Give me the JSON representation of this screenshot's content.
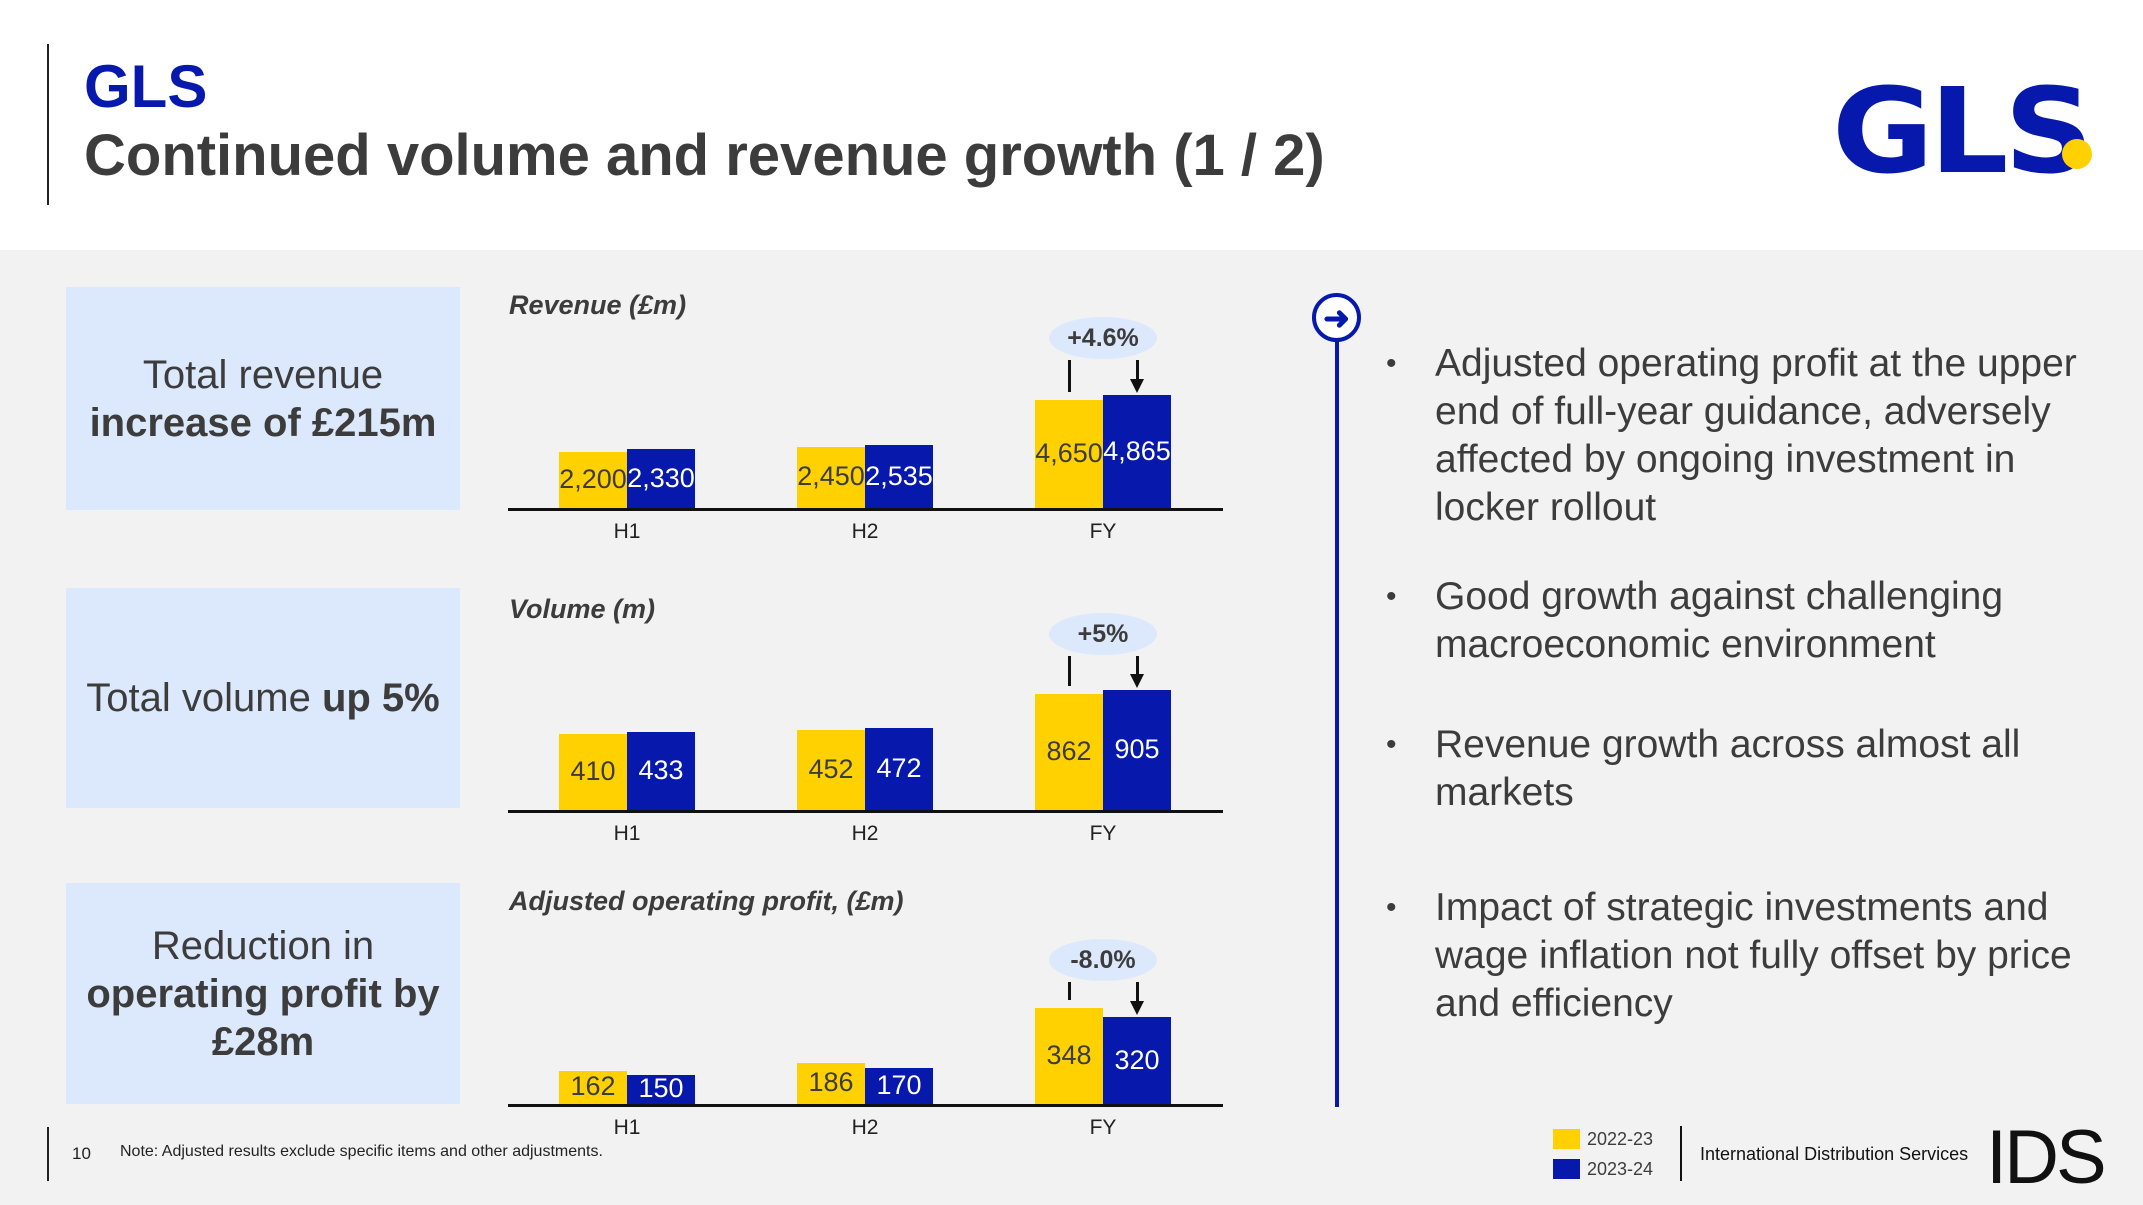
{
  "header": {
    "brand": "GLS",
    "title": "Continued volume and revenue growth (1 / 2)",
    "logo": "GLS"
  },
  "colors": {
    "prior": "#ffd100",
    "current": "#0619ac",
    "accent": "#0619ac",
    "panel": "#dce8fc"
  },
  "kpis": [
    {
      "line1": "Total revenue",
      "line2": "increase of £215m"
    },
    {
      "line1": "Total volume ",
      "line2": "up 5%"
    },
    {
      "line1": "Reduction in",
      "line2": "operating profit by £28m"
    }
  ],
  "chart_data": [
    {
      "type": "bar",
      "title": "Revenue (£m)",
      "categories": [
        "H1",
        "H2",
        "FY"
      ],
      "series": [
        {
          "name": "2022-23",
          "values": [
            2200,
            2450,
            4650
          ]
        },
        {
          "name": "2023-24",
          "values": [
            2330,
            2535,
            4865
          ]
        }
      ],
      "labels": [
        [
          "2,200",
          "2,450",
          "4,650"
        ],
        [
          "2,330",
          "2,535",
          "4,865"
        ]
      ],
      "change": "+4.6%"
    },
    {
      "type": "bar",
      "title": "Volume (m)",
      "categories": [
        "H1",
        "H2",
        "FY"
      ],
      "series": [
        {
          "name": "2022-23",
          "values": [
            410,
            452,
            862
          ]
        },
        {
          "name": "2023-24",
          "values": [
            433,
            472,
            905
          ]
        }
      ],
      "labels": [
        [
          "410",
          "452",
          "862"
        ],
        [
          "433",
          "472",
          "905"
        ]
      ],
      "change": "+5%"
    },
    {
      "type": "bar",
      "title": "Adjusted operating profit, (£m)",
      "categories": [
        "H1",
        "H2",
        "FY"
      ],
      "series": [
        {
          "name": "2022-23",
          "values": [
            162,
            186,
            348
          ]
        },
        {
          "name": "2023-24",
          "values": [
            150,
            170,
            320
          ]
        }
      ],
      "labels": [
        [
          "162",
          "186",
          "348"
        ],
        [
          "150",
          "170",
          "320"
        ]
      ],
      "change": "-8.0%"
    }
  ],
  "timeline_icon": "arrow-right-circle-icon",
  "bullets": [
    "Adjusted operating profit at the upper end of full-year guidance, adversely affected by ongoing investment in locker rollout",
    "Good growth against challenging macroeconomic environment",
    "Revenue growth across almost all markets",
    "Impact of strategic investments and wage inflation not fully offset by price and efficiency"
  ],
  "footer": {
    "page": "10",
    "note": "Note: Adjusted results exclude specific items and other adjustments.",
    "legend": [
      "2022-23",
      "2023-24"
    ],
    "company": "International Distribution Services",
    "company_logo": "IDS"
  }
}
